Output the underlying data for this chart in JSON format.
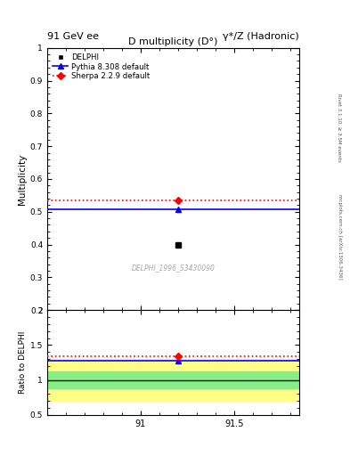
{
  "title_left": "91 GeV ee",
  "title_right": "γ*/Z (Hadronic)",
  "plot_title": "D multiplicity (D°)",
  "watermark": "DELPHI_1996_S3430090",
  "right_label_1": "Rivet 3.1.10, ≥ 3.5M events",
  "right_label_2": "mcplots.cern.ch [arXiv:1306.3436]",
  "x_data": 91.2,
  "delphi_y": 0.4,
  "pythia_y": 0.508,
  "pythia_color": "#0000ff",
  "pythia_marker_x": 91.2,
  "sherpa_y": 0.536,
  "sherpa_color": "#ff0000",
  "sherpa_marker_x": 91.2,
  "xlim": [
    90.5,
    91.85
  ],
  "ylim_main": [
    0.2,
    1.0
  ],
  "ylim_ratio": [
    0.5,
    2.0
  ],
  "delphi_color": "#000000",
  "ratio_pythia": 1.27,
  "ratio_sherpa": 1.34,
  "green_band_lo": 0.875,
  "green_band_hi": 1.125,
  "yellow_band_lo": 0.7,
  "yellow_band_hi": 1.3
}
